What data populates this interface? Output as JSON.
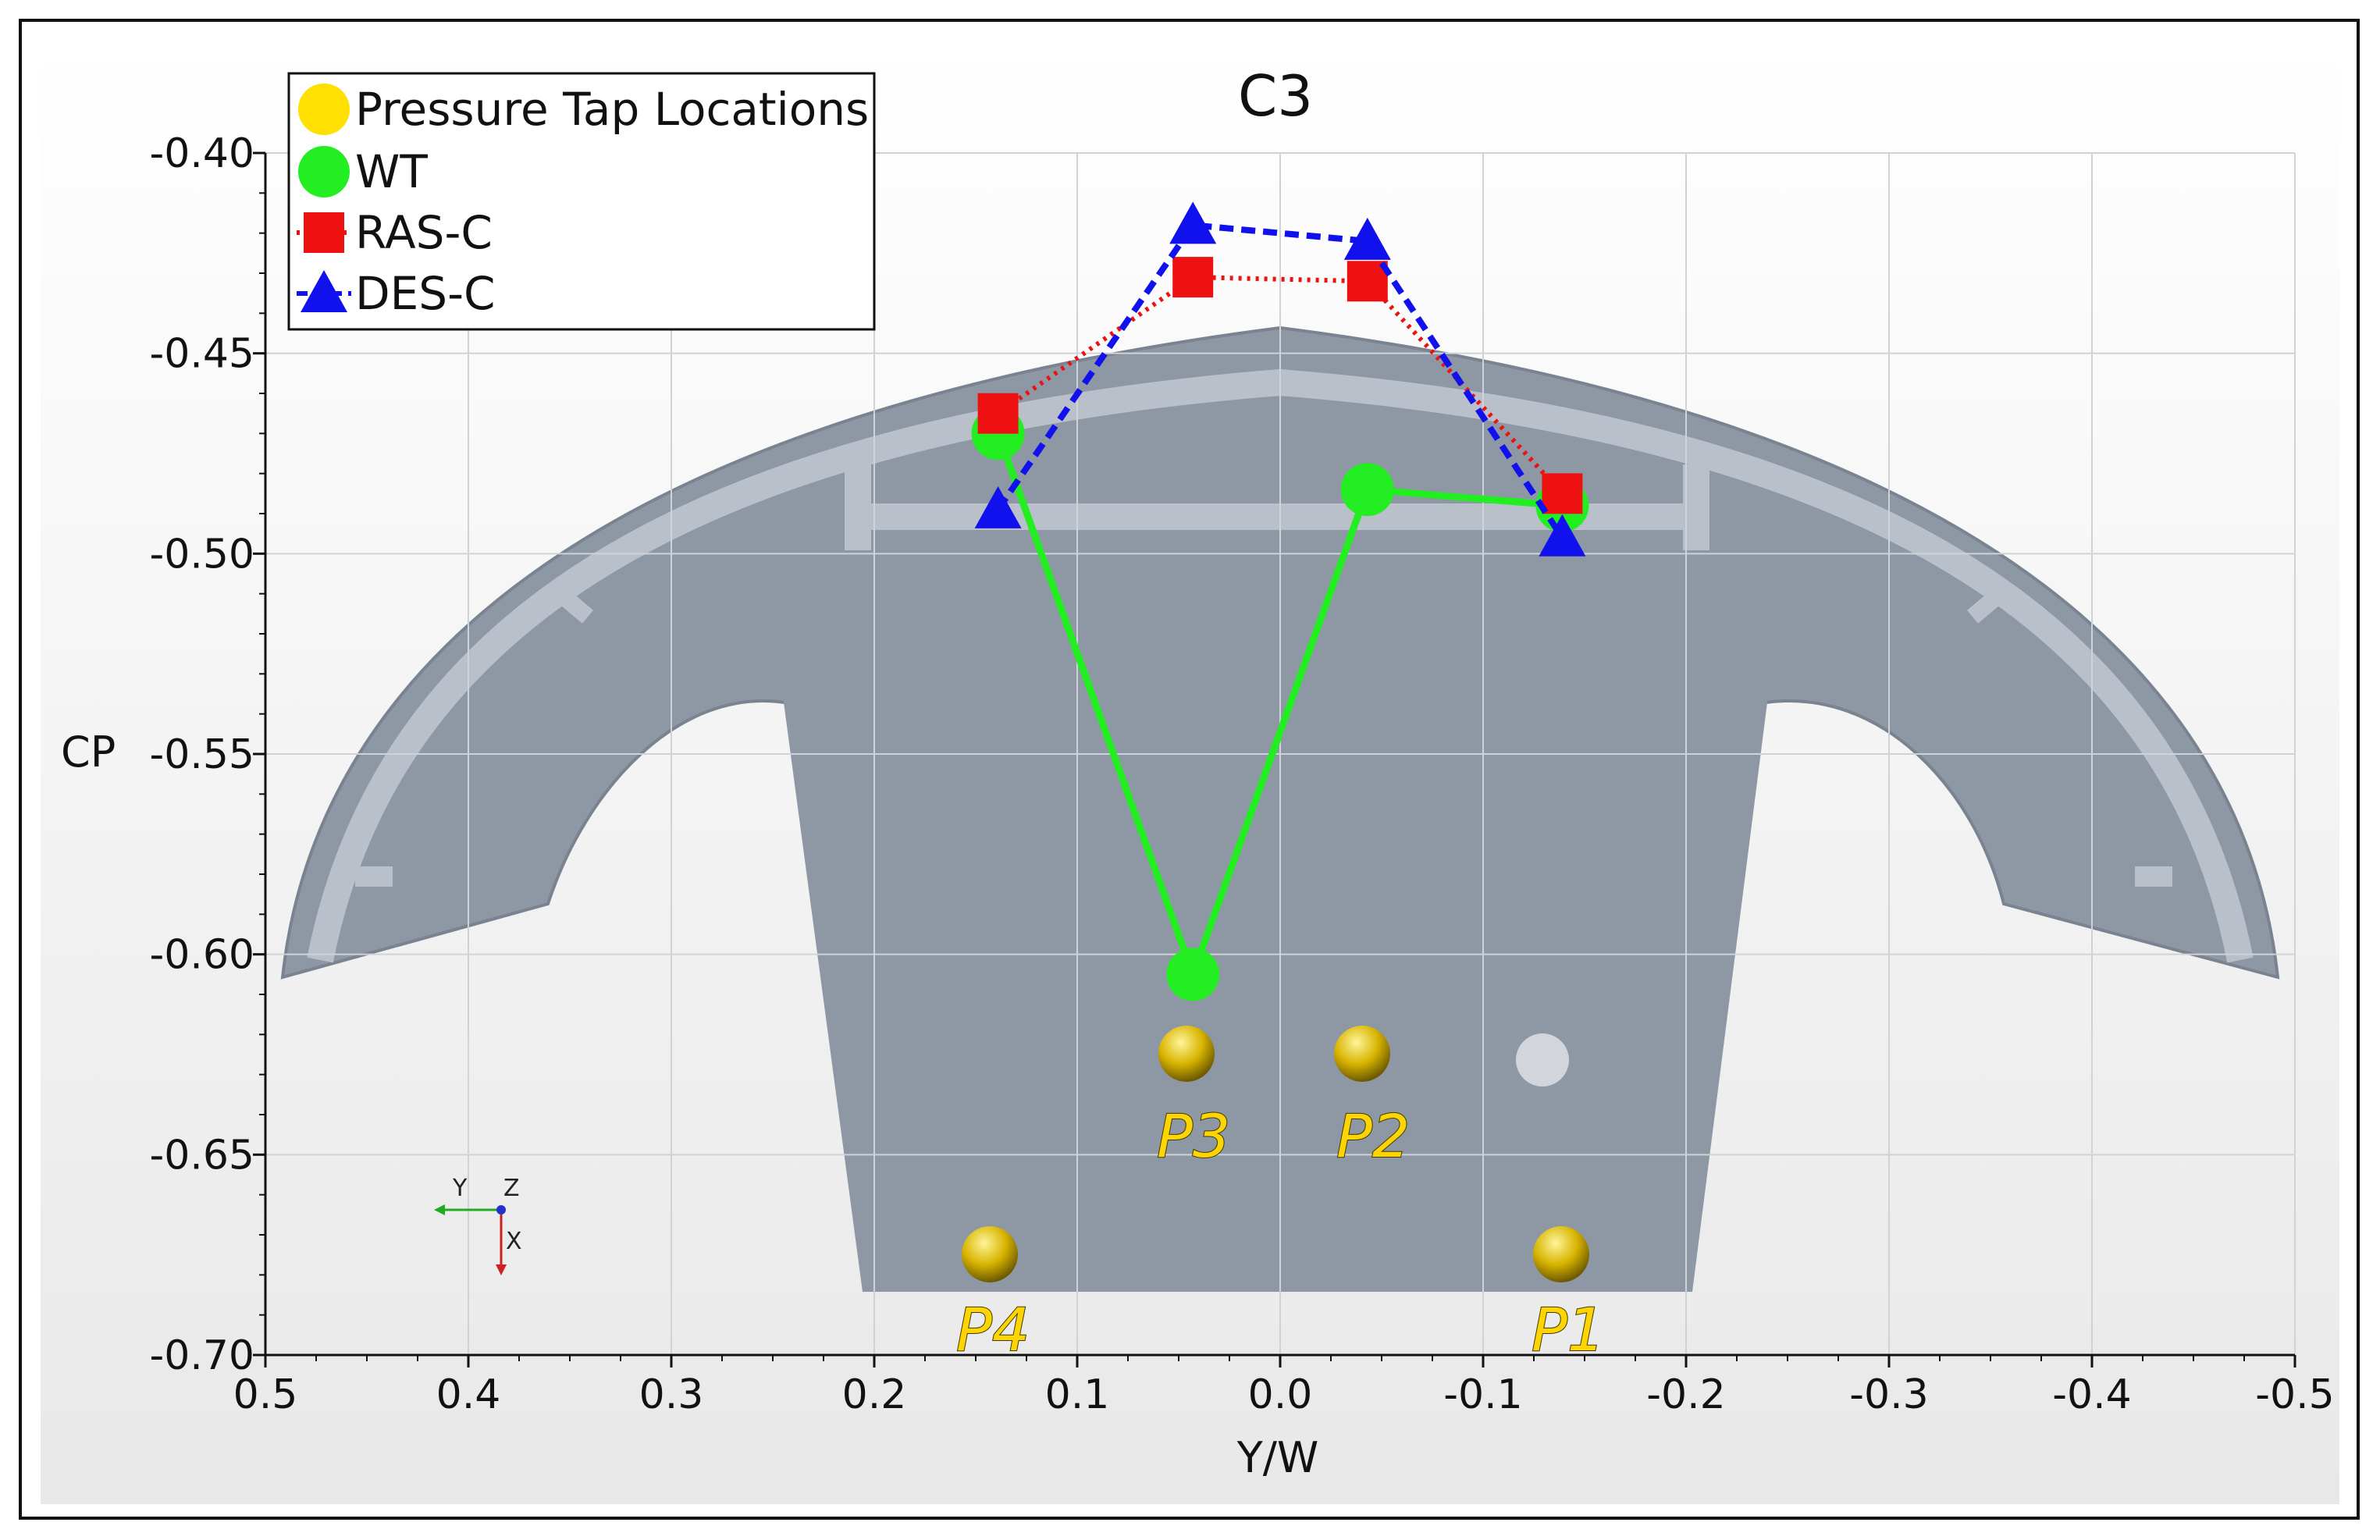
{
  "chart_data": {
    "type": "line",
    "title": "C3",
    "xlabel": "Y/W",
    "ylabel": "CP",
    "xlim": [
      0.5,
      -0.5
    ],
    "ylim": [
      -0.7,
      -0.4
    ],
    "x_ticks": [
      "0.5",
      "0.4",
      "0.3",
      "0.2",
      "0.1",
      "0.0",
      "-0.1",
      "-0.2",
      "-0.3",
      "-0.4",
      "-0.5"
    ],
    "x_tick_values": [
      0.5,
      0.4,
      0.3,
      0.2,
      0.1,
      0.0,
      -0.1,
      -0.2,
      -0.3,
      -0.4,
      -0.5
    ],
    "y_ticks": [
      "-0.40",
      "-0.45",
      "-0.50",
      "-0.55",
      "-0.60",
      "-0.65",
      "-0.70"
    ],
    "y_tick_values": [
      -0.4,
      -0.45,
      -0.5,
      -0.55,
      -0.6,
      -0.65,
      -0.7
    ],
    "grid": true,
    "legend_position": "top-left",
    "series": [
      {
        "name": "Pressure Tap Locations",
        "marker": "circle",
        "line": "none",
        "color": "#FFE000",
        "x": [],
        "y": []
      },
      {
        "name": "WT",
        "marker": "circle",
        "line": "solid",
        "color": "#22EE22",
        "x": [
          0.139,
          0.043,
          -0.043,
          -0.139
        ],
        "y": [
          -0.47,
          -0.605,
          -0.484,
          -0.488
        ]
      },
      {
        "name": "RAS-C",
        "marker": "square",
        "line": "dotted",
        "color": "#EE1111",
        "x": [
          0.139,
          0.043,
          -0.043,
          -0.139
        ],
        "y": [
          -0.465,
          -0.431,
          -0.432,
          -0.485
        ]
      },
      {
        "name": "DES-C",
        "marker": "triangle",
        "line": "dashed",
        "color": "#1111EE",
        "x": [
          0.139,
          0.043,
          -0.043,
          -0.139
        ],
        "y": [
          -0.489,
          -0.418,
          -0.422,
          -0.496
        ]
      }
    ],
    "annotations": [
      "P1",
      "P2",
      "P3",
      "P4"
    ],
    "triad_labels": [
      "Y",
      "Z",
      "X"
    ]
  }
}
